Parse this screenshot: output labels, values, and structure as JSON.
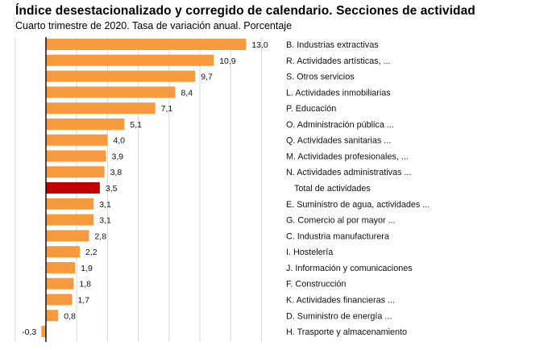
{
  "chart_data": {
    "type": "bar",
    "orientation": "horizontal",
    "title": "Índice desestacionalizado y corregido de calendario. Secciones de actividad",
    "subtitle": "Cuarto trimestre de 2020. Tasa de variación anual. Porcentaje",
    "xlabel": "",
    "ylabel": "",
    "xlim": [
      -2,
      14
    ],
    "grid_step": 2,
    "grid": true,
    "legend": "none",
    "colors": {
      "default": "#f79a3e",
      "highlight": "#c00000"
    },
    "categories": [
      "B. Industrias extractivas",
      "R. Actividades artísticas, ...",
      "S. Otros servicios",
      "L. Actividades inmobiliarias",
      "P. Educación",
      "O. Administración pública ...",
      "Q. Actividades sanitarias ...",
      "M. Actividades profesionales, ...",
      "N. Actividades administrativas ...",
      "Total de actividades",
      "E. Suministro de agua, actividades ...",
      "G. Comercio al por mayor ...",
      "C. Industria manufacturera",
      "I. Hostelería",
      "J. Información y comunicaciones",
      "F. Construcción",
      "K. Actividades financieras ...",
      "D. Suministro de energía ...",
      "H. Trasporte y almacenamiento"
    ],
    "values": [
      13.0,
      10.9,
      9.7,
      8.4,
      7.1,
      5.1,
      4.0,
      3.9,
      3.8,
      3.5,
      3.1,
      3.1,
      2.8,
      2.2,
      1.9,
      1.8,
      1.7,
      0.8,
      -0.3
    ],
    "value_labels": [
      "13,0",
      "10,9",
      "9,7",
      "8,4",
      "7,1",
      "5,1",
      "4,0",
      "3,9",
      "3,8",
      "3,5",
      "3,1",
      "3,1",
      "2,8",
      "2,2",
      "1,9",
      "1,8",
      "1,7",
      "0,8",
      "-0,3"
    ],
    "highlighted": [
      "Total de actividades"
    ]
  }
}
